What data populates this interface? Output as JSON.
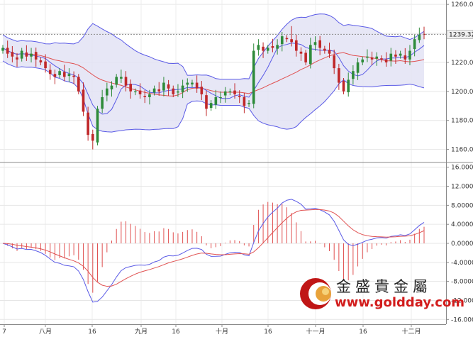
{
  "chart_data": [
    {
      "type": "candlestick",
      "title": "",
      "overlays": [
        "Bollinger Bands",
        "Moving Average"
      ],
      "x_ticks": [
        "7",
        "八月",
        "16",
        "九月",
        "16",
        "十月",
        "16",
        "十一月",
        "16",
        "十二月"
      ],
      "y_ticks": [
        "1160.0",
        "1180.0",
        "1200.0",
        "1220.0",
        "1240.0",
        "1260.0"
      ],
      "ylim": [
        1151,
        1263
      ],
      "last_price_label": "1239.32",
      "last_price": 1239.32,
      "colors": {
        "up": "#2e8b3a",
        "down": "#c0282a",
        "band": "#5a5ae6",
        "band_fill": "#e3e3f5",
        "ma": "#e05050"
      },
      "close": [
        1230,
        1226,
        1224,
        1222,
        1228,
        1224,
        1226,
        1222,
        1220,
        1216,
        1212,
        1210,
        1214,
        1210,
        1212,
        1210,
        1200,
        1186,
        1170,
        1166,
        1188,
        1196,
        1202,
        1204,
        1210,
        1210,
        1204,
        1200,
        1200,
        1198,
        1196,
        1198,
        1202,
        1200,
        1206,
        1202,
        1198,
        1200,
        1204,
        1206,
        1206,
        1202,
        1198,
        1188,
        1192,
        1196,
        1196,
        1200,
        1200,
        1198,
        1196,
        1190,
        1192,
        1228,
        1232,
        1228,
        1230,
        1230,
        1232,
        1238,
        1236,
        1234,
        1228,
        1226,
        1220,
        1232,
        1234,
        1230,
        1228,
        1226,
        1216,
        1206,
        1200,
        1208,
        1214,
        1220,
        1222,
        1224,
        1222,
        1224,
        1222,
        1220,
        1226,
        1224,
        1226,
        1222,
        1228,
        1236,
        1239,
        1239
      ]
    },
    {
      "type": "line",
      "indicator": "MACD",
      "y_ticks": [
        "-16.0000",
        "-12.0000",
        "-8.0000",
        "-4.0000",
        "0.0000",
        "4.0000",
        "8.0000",
        "12.0000",
        "16.0000"
      ],
      "ylim": [
        -17,
        17
      ],
      "colors": {
        "macd": "#5a5ae6",
        "signal": "#e05050",
        "histogram": "#e05050"
      }
    }
  ],
  "watermark": {
    "name_cn": "金盛貴金屬",
    "url": "www.goldday.com"
  }
}
